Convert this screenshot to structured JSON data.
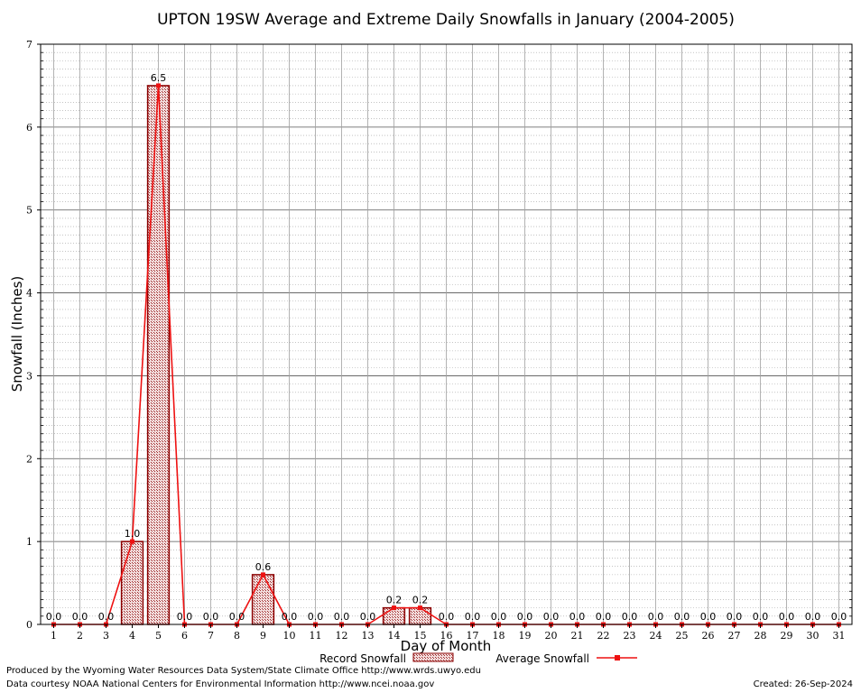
{
  "chart_data": {
    "type": "bar",
    "title": "UPTON 19SW Average and Extreme Daily Snowfalls in January (2004-2005)",
    "xlabel": "Day of Month",
    "ylabel": "Snowfall (Inches)",
    "ylim": [
      0,
      7
    ],
    "yticks": [
      "0",
      "1",
      "2",
      "3",
      "4",
      "5",
      "6",
      "7"
    ],
    "categories": [
      "1",
      "2",
      "3",
      "4",
      "5",
      "6",
      "7",
      "8",
      "9",
      "10",
      "11",
      "12",
      "13",
      "14",
      "15",
      "16",
      "17",
      "18",
      "19",
      "20",
      "21",
      "22",
      "23",
      "24",
      "25",
      "26",
      "27",
      "28",
      "29",
      "30",
      "31"
    ],
    "grid": true,
    "legend_position": "bottom",
    "series": [
      {
        "name": "Record Snowfall",
        "kind": "bar",
        "values": [
          0,
          0,
          0,
          1.0,
          6.5,
          0,
          0,
          0,
          0.6,
          0,
          0,
          0,
          0,
          0.2,
          0.2,
          0,
          0,
          0,
          0,
          0,
          0,
          0,
          0,
          0,
          0,
          0,
          0,
          0,
          0,
          0,
          0
        ],
        "labels": [
          "0.0",
          "0.0",
          "0.0",
          "1.0",
          "6.5",
          "0.0",
          "0.0",
          "0.0",
          "0.6",
          "0.0",
          "0.0",
          "0.0",
          "0.0",
          "0.2",
          "0.2",
          "0.0",
          "0.0",
          "0.0",
          "0.0",
          "0.0",
          "0.0",
          "0.0",
          "0.0",
          "0.0",
          "0.0",
          "0.0",
          "0.0",
          "0.0",
          "0.0",
          "0.0",
          "0.0"
        ]
      },
      {
        "name": "Average Snowfall",
        "kind": "line",
        "values": [
          0,
          0,
          0,
          1.0,
          6.5,
          0,
          0,
          0,
          0.6,
          0,
          0,
          0,
          0,
          0.2,
          0.2,
          0,
          0,
          0,
          0,
          0,
          0,
          0,
          0,
          0,
          0,
          0,
          0,
          0,
          0,
          0,
          0
        ]
      }
    ],
    "colors": {
      "bar_border": "#8b0000",
      "bar_fill": "#e8c4c4",
      "line": "#ee1111",
      "grid": "#a0a0a0"
    }
  },
  "footer": {
    "produced_by": "Produced by the Wyoming Water Resources Data System/State Climate Office http://www.wrds.uwyo.edu",
    "data_courtesy": "Data courtesy NOAA National Centers for Environmental Information http://www.ncei.noaa.gov",
    "created": "Created:  26-Sep-2024"
  }
}
